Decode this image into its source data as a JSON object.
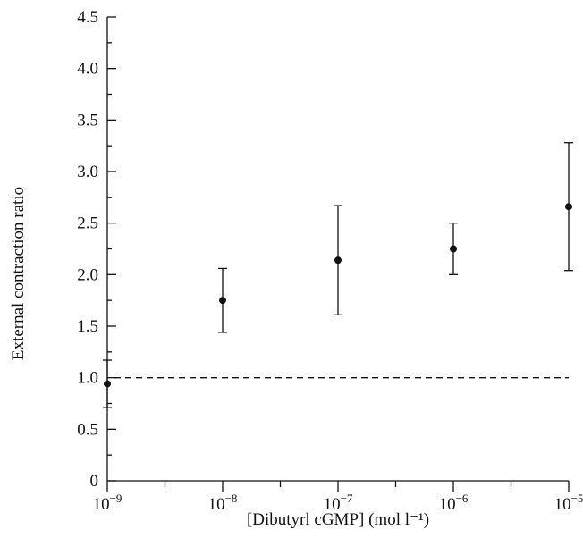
{
  "chart_data": {
    "type": "scatter",
    "title": "",
    "xlabel": "[Dibutyrl cGMP] (mol l⁻¹)",
    "ylabel": "External contraction ratio",
    "x_scale": "log",
    "xlim": [
      1e-09,
      1e-05
    ],
    "ylim": [
      0,
      4.5
    ],
    "x_tick_values": [
      1e-09,
      1e-08,
      1e-07,
      1e-06,
      1e-05
    ],
    "x_tick_labels": [
      {
        "base": "10",
        "exp": "−9"
      },
      {
        "base": "10",
        "exp": "−8"
      },
      {
        "base": "10",
        "exp": "−7"
      },
      {
        "base": "10",
        "exp": "−6"
      },
      {
        "base": "10",
        "exp": "−5"
      }
    ],
    "y_ticks": [
      0,
      0.5,
      1.0,
      1.5,
      2.0,
      2.5,
      3.0,
      3.5,
      4.0,
      4.5
    ],
    "y_tick_labels": [
      "0",
      "0.5",
      "1.0",
      "1.5",
      "2.0",
      "2.5",
      "3.0",
      "3.5",
      "4.0",
      "4.5"
    ],
    "points": [
      {
        "x": 1e-09,
        "y": 0.94,
        "err_low": 0.71,
        "err_high": 1.17
      },
      {
        "x": 1e-08,
        "y": 1.75,
        "err_low": 1.44,
        "err_high": 2.06
      },
      {
        "x": 1e-07,
        "y": 2.14,
        "err_low": 1.61,
        "err_high": 2.67
      },
      {
        "x": 1e-06,
        "y": 2.25,
        "err_low": 2.0,
        "err_high": 2.5
      },
      {
        "x": 1e-05,
        "y": 2.66,
        "err_low": 2.04,
        "err_high": 3.28
      }
    ],
    "reference_line": {
      "y": 1.0,
      "style": "dashed"
    },
    "grid": false,
    "legend": "none"
  }
}
